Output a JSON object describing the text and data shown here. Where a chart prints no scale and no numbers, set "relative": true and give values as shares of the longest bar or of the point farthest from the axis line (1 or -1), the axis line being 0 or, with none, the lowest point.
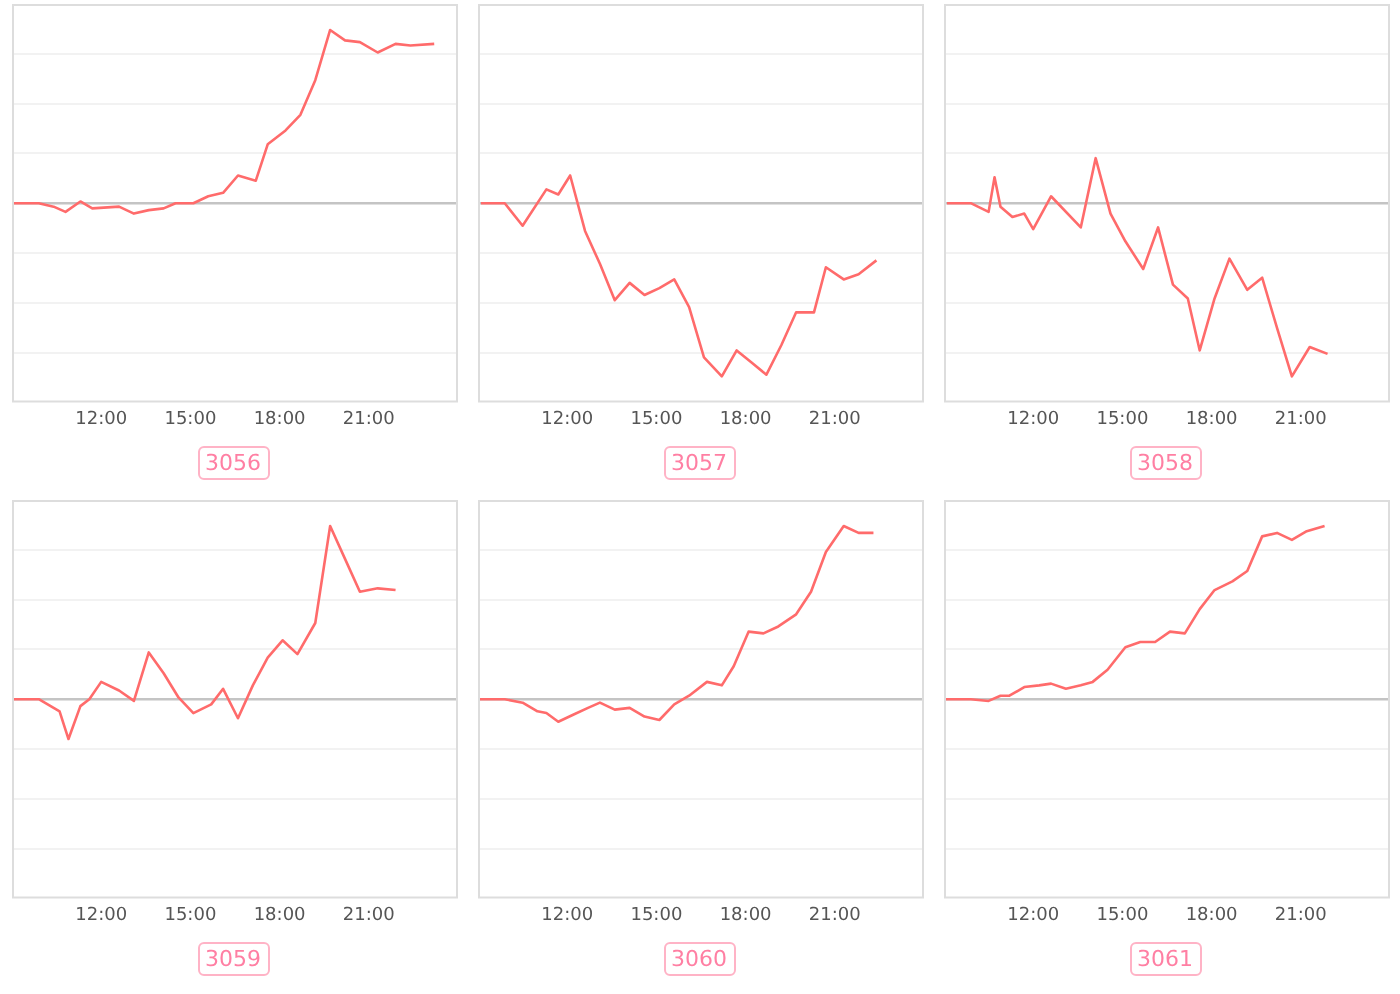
{
  "chart_data": [
    {
      "type": "line",
      "title": "3056",
      "relative": true,
      "grid": "y",
      "tick_labels": "x",
      "legend": false,
      "xlim": [
        9,
        24
      ],
      "xticks": [
        {
          "value": 12,
          "label": "12:00"
        },
        {
          "value": 15,
          "label": "15:00"
        },
        {
          "value": 18,
          "label": "18:00"
        },
        {
          "value": 21,
          "label": "21:00"
        }
      ],
      "x": [
        9.0,
        9.9,
        10.4,
        10.8,
        11.3,
        11.7,
        12.6,
        13.1,
        13.6,
        14.1,
        14.5,
        15.1,
        15.6,
        16.1,
        16.6,
        17.2,
        17.6,
        18.2,
        18.7,
        19.2,
        19.7,
        20.2,
        20.7,
        21.3,
        21.9,
        22.4,
        23.2
      ],
      "series": [
        {
          "color": "#ff6b6b",
          "values": [
            0,
            0,
            -0.02,
            -0.05,
            0.01,
            -0.03,
            -0.02,
            -0.06,
            -0.04,
            -0.03,
            0,
            0,
            0.04,
            0.06,
            0.16,
            0.13,
            0.34,
            0.42,
            0.51,
            0.71,
            1,
            0.94,
            0.93,
            0.87,
            0.92,
            0.91,
            0.92
          ]
        }
      ]
    },
    {
      "type": "line",
      "title": "3057",
      "relative": true,
      "grid": "y",
      "tick_labels": "x",
      "legend": false,
      "xlim": [
        9,
        24
      ],
      "xticks": [
        {
          "value": 12,
          "label": "12:00"
        },
        {
          "value": 15,
          "label": "15:00"
        },
        {
          "value": 18,
          "label": "18:00"
        },
        {
          "value": 21,
          "label": "21:00"
        }
      ],
      "x": [
        9.1,
        9.9,
        10.5,
        11.3,
        11.7,
        12.1,
        12.6,
        13.1,
        13.6,
        14.1,
        14.6,
        15.1,
        15.6,
        16.1,
        16.6,
        17.2,
        17.7,
        18.2,
        18.7,
        19.2,
        19.7,
        20.3,
        20.7,
        21.3,
        21.8,
        22.4
      ],
      "series": [
        {
          "color": "#ff6b6b",
          "values": [
            0,
            0,
            -0.13,
            0.08,
            0.05,
            0.16,
            -0.16,
            -0.35,
            -0.56,
            -0.46,
            -0.53,
            -0.49,
            -0.44,
            -0.6,
            -0.89,
            -1,
            -0.85,
            -0.92,
            -0.99,
            -0.82,
            -0.63,
            -0.63,
            -0.37,
            -0.44,
            -0.41,
            -0.33
          ]
        }
      ]
    },
    {
      "type": "line",
      "title": "3058",
      "relative": true,
      "grid": "y",
      "tick_labels": "x",
      "legend": false,
      "xlim": [
        9,
        24
      ],
      "xticks": [
        {
          "value": 12,
          "label": "12:00"
        },
        {
          "value": 15,
          "label": "15:00"
        },
        {
          "value": 18,
          "label": "18:00"
        },
        {
          "value": 21,
          "label": "21:00"
        }
      ],
      "x": [
        9.1,
        9.9,
        10.5,
        10.7,
        10.9,
        11.3,
        11.7,
        12.0,
        12.6,
        13.6,
        14.1,
        14.6,
        15.1,
        15.7,
        16.2,
        16.7,
        17.2,
        17.6,
        18.1,
        18.6,
        19.2,
        19.7,
        20.2,
        20.7,
        21.3,
        21.9
      ],
      "series": [
        {
          "color": "#ff6b6b",
          "values": [
            0,
            0,
            -0.05,
            0.15,
            -0.02,
            -0.08,
            -0.06,
            -0.15,
            0.04,
            -0.14,
            0.26,
            -0.06,
            -0.22,
            -0.38,
            -0.14,
            -0.47,
            -0.55,
            -0.85,
            -0.55,
            -0.32,
            -0.5,
            -0.43,
            -0.72,
            -1,
            -0.83,
            -0.87
          ]
        }
      ]
    },
    {
      "type": "line",
      "title": "3059",
      "relative": true,
      "grid": "y",
      "tick_labels": "x",
      "legend": false,
      "xlim": [
        9,
        24
      ],
      "xticks": [
        {
          "value": 12,
          "label": "12:00"
        },
        {
          "value": 15,
          "label": "15:00"
        },
        {
          "value": 18,
          "label": "18:00"
        },
        {
          "value": 21,
          "label": "21:00"
        }
      ],
      "x": [
        9.0,
        9.9,
        10.6,
        10.9,
        11.3,
        11.6,
        12.0,
        12.6,
        13.1,
        13.6,
        14.1,
        14.6,
        15.1,
        15.7,
        16.1,
        16.6,
        17.1,
        17.6,
        18.1,
        18.6,
        19.2,
        19.7,
        20.2,
        20.7,
        21.3,
        21.9
      ],
      "series": [
        {
          "color": "#ff6b6b",
          "values": [
            0,
            0,
            -0.07,
            -0.23,
            -0.04,
            0,
            0.1,
            0.05,
            -0.01,
            0.27,
            0.15,
            0.01,
            -0.08,
            -0.03,
            0.06,
            -0.11,
            0.08,
            0.24,
            0.34,
            0.26,
            0.44,
            1,
            0.81,
            0.62,
            0.64,
            0.63
          ]
        }
      ]
    },
    {
      "type": "line",
      "title": "3060",
      "relative": true,
      "grid": "y",
      "tick_labels": "x",
      "legend": false,
      "xlim": [
        9,
        24
      ],
      "xticks": [
        {
          "value": 12,
          "label": "12:00"
        },
        {
          "value": 15,
          "label": "15:00"
        },
        {
          "value": 18,
          "label": "18:00"
        },
        {
          "value": 21,
          "label": "21:00"
        }
      ],
      "x": [
        9.0,
        9.9,
        10.5,
        11.0,
        11.3,
        11.7,
        12.2,
        12.7,
        13.1,
        13.6,
        14.1,
        14.6,
        15.1,
        15.6,
        16.1,
        16.7,
        17.2,
        17.6,
        18.1,
        18.6,
        19.1,
        19.7,
        20.2,
        20.7,
        21.3,
        21.8,
        22.3
      ],
      "series": [
        {
          "color": "#ff6b6b",
          "values": [
            0,
            0,
            -0.02,
            -0.07,
            -0.08,
            -0.13,
            -0.09,
            -0.05,
            -0.02,
            -0.06,
            -0.05,
            -0.1,
            -0.12,
            -0.03,
            0.02,
            0.1,
            0.08,
            0.19,
            0.39,
            0.38,
            0.42,
            0.49,
            0.62,
            0.85,
            1,
            0.96,
            0.96
          ]
        }
      ]
    },
    {
      "type": "line",
      "title": "3061",
      "relative": true,
      "grid": "y",
      "tick_labels": "x",
      "legend": false,
      "xlim": [
        9,
        24
      ],
      "xticks": [
        {
          "value": 12,
          "label": "12:00"
        },
        {
          "value": 15,
          "label": "15:00"
        },
        {
          "value": 18,
          "label": "18:00"
        },
        {
          "value": 21,
          "label": "21:00"
        }
      ],
      "x": [
        9.0,
        9.9,
        10.5,
        10.9,
        11.2,
        11.7,
        12.2,
        12.6,
        13.1,
        13.6,
        14.0,
        14.5,
        15.1,
        15.6,
        16.1,
        16.6,
        17.1,
        17.6,
        18.1,
        18.7,
        19.2,
        19.7,
        20.2,
        20.7,
        21.2,
        21.8
      ],
      "series": [
        {
          "color": "#ff6b6b",
          "values": [
            0,
            0,
            -0.01,
            0.02,
            0.02,
            0.07,
            0.08,
            0.09,
            0.06,
            0.08,
            0.1,
            0.17,
            0.3,
            0.33,
            0.33,
            0.39,
            0.38,
            0.52,
            0.63,
            0.68,
            0.74,
            0.94,
            0.96,
            0.92,
            0.97,
            1
          ]
        }
      ]
    }
  ]
}
